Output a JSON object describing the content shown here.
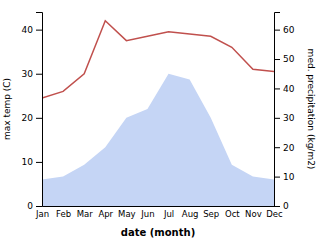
{
  "chart_data": {
    "type": "line",
    "categories": [
      "Jan",
      "Feb",
      "Mar",
      "Apr",
      "May",
      "Jun",
      "Jul",
      "Aug",
      "Sep",
      "Oct",
      "Nov",
      "Dec"
    ],
    "series": [
      {
        "type": "area",
        "axis": "y2",
        "color": "#c5d5f5",
        "values": [
          9.0,
          10.0,
          14.0,
          20.0,
          30.0,
          33.0,
          45.0,
          43.0,
          30.0,
          14.0,
          10.0,
          9.0
        ]
      },
      {
        "type": "line",
        "color": "#c0504d",
        "values": [
          24.5,
          26.0,
          30.0,
          42.0,
          37.5,
          38.5,
          39.5,
          39.0,
          38.5,
          36.0,
          31.0,
          30.5
        ]
      }
    ],
    "xlabel": "date (month)",
    "ylabel": "max temp (C)",
    "y2label": "med. precipitation (kg/m2)",
    "ylim": [
      0,
      44
    ],
    "yticks": [
      0,
      10,
      20,
      30,
      40
    ],
    "y2lim": [
      0,
      66
    ],
    "y2ticks": [
      0,
      10,
      20,
      30,
      40,
      50,
      60
    ],
    "grid": false
  }
}
